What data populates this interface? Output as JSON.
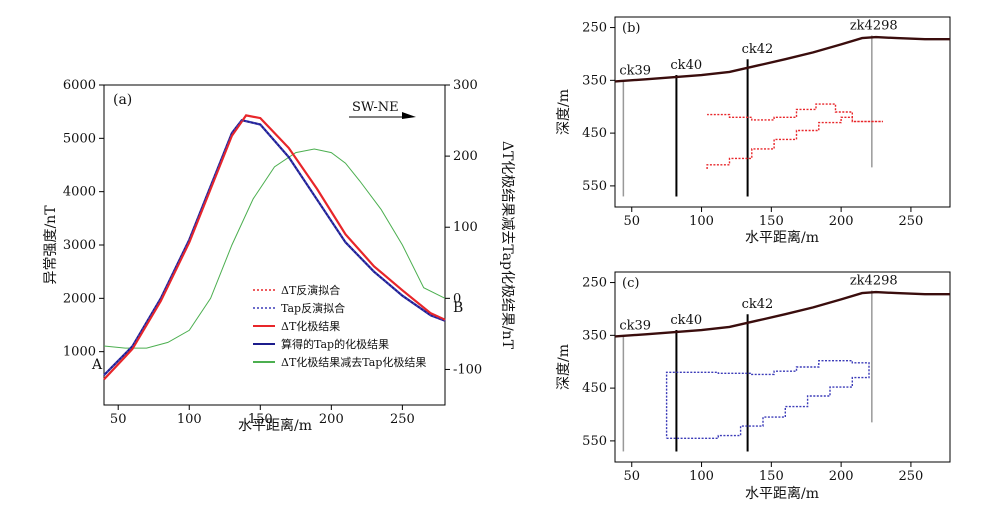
{
  "chart_data": [
    {
      "panel": "(a)",
      "type": "line",
      "direction_label": "SW-NE",
      "endpoint_labels": {
        "start": "A",
        "end": "B"
      },
      "xlabel": "水平距离/m",
      "ylabel": "异常强度/nT",
      "y2label": "ΔT化极结果减去Tap化极结果/nT",
      "xlim": [
        40,
        280
      ],
      "ylim": [
        0,
        6000
      ],
      "y2lim": [
        -150,
        300
      ],
      "xticks": [
        "50",
        "100",
        "150",
        "200",
        "250"
      ],
      "yticks": [
        "1000",
        "2000",
        "3000",
        "4000",
        "5000",
        "6000"
      ],
      "y2ticks": [
        "-100",
        "0",
        "100",
        "200",
        "300"
      ],
      "series": [
        {
          "name": "ΔT反演拟合",
          "color": "#e8262a",
          "style": "dotted",
          "axis": "left",
          "x": [
            40,
            60,
            80,
            100,
            115,
            130,
            140,
            150,
            170,
            190,
            210,
            230,
            250,
            270,
            280
          ],
          "y": [
            480,
            1050,
            1950,
            3050,
            4050,
            5050,
            5430,
            5380,
            4820,
            4050,
            3200,
            2600,
            2150,
            1720,
            1600
          ]
        },
        {
          "name": "Tap反演拟合",
          "color": "#3b3bb8",
          "style": "dotted",
          "axis": "left",
          "x": [
            40,
            60,
            80,
            100,
            115,
            130,
            137,
            150,
            170,
            190,
            210,
            230,
            250,
            270,
            280
          ],
          "y": [
            560,
            1100,
            2000,
            3100,
            4100,
            5100,
            5340,
            5260,
            4650,
            3850,
            3050,
            2500,
            2050,
            1680,
            1580
          ]
        },
        {
          "name": "ΔT化极结果",
          "color": "#e8262a",
          "style": "solid",
          "axis": "left",
          "x": [
            40,
            60,
            80,
            100,
            115,
            130,
            140,
            150,
            170,
            190,
            210,
            230,
            250,
            270,
            280
          ],
          "y": [
            480,
            1050,
            1950,
            3050,
            4050,
            5050,
            5430,
            5380,
            4820,
            4050,
            3200,
            2600,
            2150,
            1720,
            1600
          ]
        },
        {
          "name": "算得的Tap的化极结果",
          "color": "#1c1c8c",
          "style": "solid",
          "axis": "left",
          "x": [
            40,
            60,
            80,
            100,
            115,
            130,
            137,
            150,
            170,
            190,
            210,
            230,
            250,
            270,
            280
          ],
          "y": [
            560,
            1100,
            2000,
            3100,
            4100,
            5100,
            5340,
            5260,
            4650,
            3850,
            3050,
            2500,
            2050,
            1680,
            1580
          ]
        },
        {
          "name": "ΔT化极结果减去Tap化极结果",
          "color": "#4caf50",
          "style": "solid",
          "axis": "right",
          "x": [
            40,
            55,
            70,
            85,
            100,
            115,
            130,
            145,
            160,
            175,
            188,
            200,
            210,
            220,
            235,
            250,
            265,
            280
          ],
          "y": [
            -67,
            -70,
            -70,
            -62,
            -45,
            0,
            75,
            140,
            185,
            205,
            210,
            205,
            190,
            165,
            125,
            75,
            15,
            0
          ]
        }
      ]
    },
    {
      "panel": "(b)",
      "type": "line",
      "xlabel": "水平距离/m",
      "ylabel": "深度/m",
      "xlim": [
        38,
        278
      ],
      "ylim": [
        590,
        230
      ],
      "xticks": [
        "50",
        "100",
        "150",
        "200",
        "250"
      ],
      "yticks": [
        "250",
        "350",
        "450",
        "550"
      ],
      "boreholes": [
        {
          "label": "ck39",
          "x": 44,
          "top": 350,
          "bottom": 570,
          "color": "#999999"
        },
        {
          "label": "ck40",
          "x": 82,
          "top": 340,
          "bottom": 570,
          "color": "#000000"
        },
        {
          "label": "ck42",
          "x": 133,
          "top": 310,
          "bottom": 570,
          "color": "#000000"
        },
        {
          "label": "zk4298",
          "x": 222,
          "top": 265,
          "bottom": 515,
          "color": "#999999"
        }
      ],
      "topography": {
        "x": [
          38,
          60,
          80,
          100,
          120,
          140,
          160,
          180,
          200,
          215,
          225,
          240,
          260,
          278
        ],
        "y": [
          352,
          348,
          344,
          340,
          334,
          322,
          310,
          297,
          282,
          270,
          268,
          270,
          272,
          272
        ]
      },
      "body": {
        "color": "#e8262a",
        "x": [
          104,
          104,
          120,
          120,
          136,
          136,
          152,
          152,
          168,
          168,
          184,
          184,
          200,
          200,
          208,
          208,
          230,
          208,
          208,
          196,
          196,
          182,
          182,
          168,
          168,
          152,
          152,
          136,
          136,
          120,
          120,
          104
        ],
        "y": [
          518,
          510,
          510,
          498,
          498,
          480,
          480,
          462,
          462,
          445,
          445,
          430,
          430,
          420,
          420,
          428,
          428,
          428,
          410,
          410,
          395,
          395,
          405,
          405,
          420,
          420,
          425,
          425,
          420,
          420,
          415,
          415
        ]
      }
    },
    {
      "panel": "(c)",
      "type": "line",
      "xlabel": "水平距离/m",
      "ylabel": "深度/m",
      "xlim": [
        38,
        278
      ],
      "ylim": [
        590,
        230
      ],
      "xticks": [
        "50",
        "100",
        "150",
        "200",
        "250"
      ],
      "yticks": [
        "250",
        "350",
        "450",
        "550"
      ],
      "boreholes": [
        {
          "label": "ck39",
          "x": 44,
          "top": 350,
          "bottom": 570,
          "color": "#999999"
        },
        {
          "label": "ck40",
          "x": 82,
          "top": 340,
          "bottom": 570,
          "color": "#000000"
        },
        {
          "label": "ck42",
          "x": 133,
          "top": 310,
          "bottom": 570,
          "color": "#000000"
        },
        {
          "label": "zk4298",
          "x": 222,
          "top": 265,
          "bottom": 515,
          "color": "#999999"
        }
      ],
      "topography": {
        "x": [
          38,
          60,
          80,
          100,
          120,
          140,
          160,
          180,
          200,
          215,
          225,
          240,
          260,
          278
        ],
        "y": [
          352,
          348,
          344,
          340,
          334,
          322,
          310,
          297,
          282,
          270,
          268,
          270,
          272,
          272
        ]
      },
      "body": {
        "color": "#3b3bb8",
        "x": [
          75,
          112,
          112,
          128,
          128,
          144,
          144,
          160,
          160,
          176,
          176,
          192,
          192,
          208,
          208,
          220,
          220,
          208,
          208,
          184,
          184,
          168,
          168,
          152,
          152,
          136,
          136,
          112,
          112,
          75,
          75
        ],
        "y": [
          545,
          545,
          540,
          540,
          522,
          522,
          505,
          505,
          485,
          485,
          465,
          465,
          448,
          448,
          430,
          430,
          402,
          402,
          398,
          398,
          410,
          410,
          418,
          418,
          424,
          424,
          422,
          422,
          420,
          420,
          545
        ]
      }
    }
  ]
}
